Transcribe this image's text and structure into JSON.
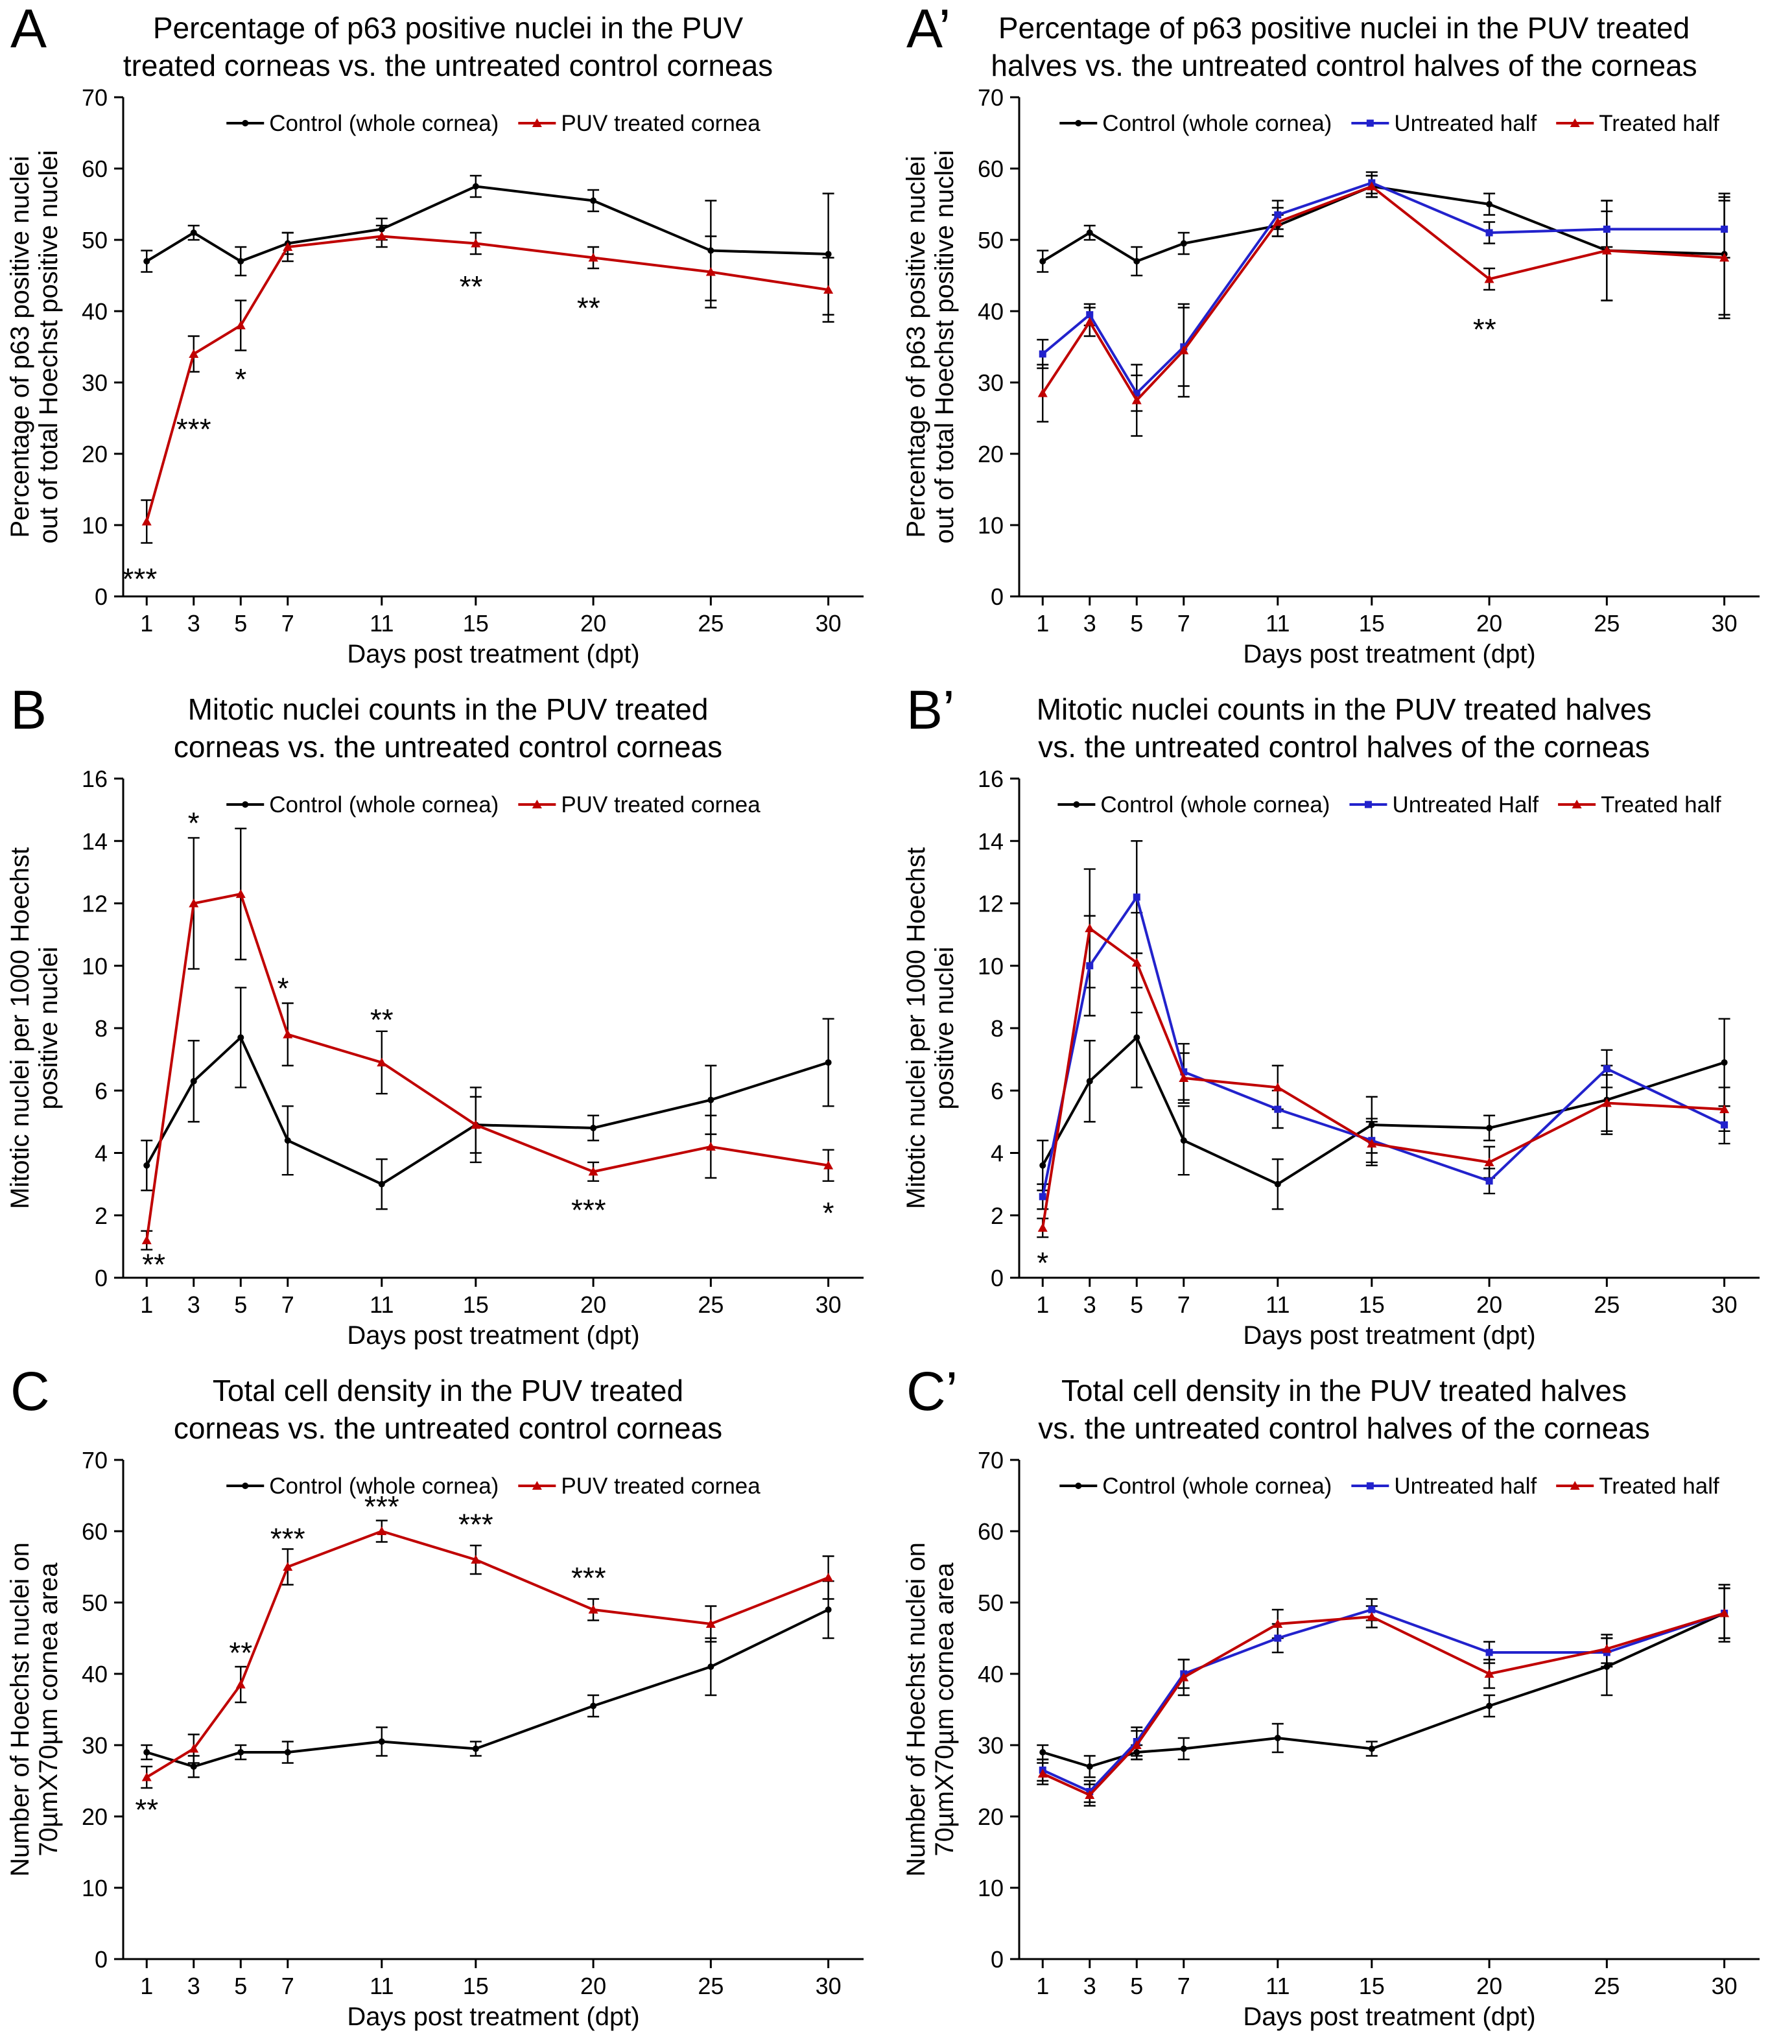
{
  "xlabel_shared": "Days post treatment (dpt)",
  "chart_data": [
    {
      "panel": "A",
      "type": "line",
      "title": "Percentage of p63 positive nuclei in the PUV\ntreated corneas vs. the untreated control corneas",
      "xlabel": "Days post treatment (dpt)",
      "ylabel": "Percentage of p63 positive nuclei\nout of total Hoechst positive nuclei",
      "x": [
        1,
        3,
        5,
        7,
        11,
        15,
        20,
        25,
        30
      ],
      "xlim": [
        0,
        31.5
      ],
      "ylim": [
        0,
        70
      ],
      "ytick_step": 10,
      "legend_position": "top",
      "grid": false,
      "series": [
        {
          "name": "Control (whole cornea)",
          "color": "#000000",
          "marker": "circle",
          "values": [
            47,
            51,
            47,
            49.5,
            51.5,
            57.5,
            55.5,
            48.5,
            48
          ],
          "errors": [
            1.5,
            1,
            2,
            1.5,
            1.5,
            1.5,
            1.5,
            7,
            8.5
          ]
        },
        {
          "name": "PUV treated cornea",
          "color": "#c00000",
          "marker": "triangle",
          "values": [
            10.5,
            34,
            38,
            49,
            50.5,
            49.5,
            47.5,
            45.5,
            43
          ],
          "errors": [
            3,
            2.5,
            3.5,
            2,
            1.5,
            1.5,
            1.5,
            5,
            4.5
          ]
        }
      ],
      "annotations": [
        {
          "text": "***",
          "x": 0.7,
          "y": 3
        },
        {
          "text": "***",
          "x": 3,
          "y": 24
        },
        {
          "text": "*",
          "x": 5,
          "y": 31
        },
        {
          "text": "**",
          "x": 14.8,
          "y": 44
        },
        {
          "text": "**",
          "x": 19.8,
          "y": 41
        }
      ]
    },
    {
      "panel": "A’",
      "type": "line",
      "title": "Percentage of p63 positive nuclei in the PUV treated\nhalves vs. the untreated control halves of the corneas",
      "xlabel": "Days post treatment (dpt)",
      "ylabel": "Percentage of p63 positive nuclei\nout of total Hoechst positive nuclei",
      "x": [
        1,
        3,
        5,
        7,
        11,
        15,
        20,
        25,
        30
      ],
      "xlim": [
        0,
        31.5
      ],
      "ylim": [
        0,
        70
      ],
      "ytick_step": 10,
      "legend_position": "top",
      "grid": false,
      "series": [
        {
          "name": "Control (whole cornea)",
          "color": "#000000",
          "marker": "circle",
          "values": [
            47,
            51,
            47,
            49.5,
            52,
            57.5,
            55,
            48.5,
            48
          ],
          "errors": [
            1.5,
            1,
            2,
            1.5,
            1.5,
            1.5,
            1.5,
            7,
            8.5
          ]
        },
        {
          "name": "Untreated half",
          "color": "#2222cc",
          "marker": "square",
          "values": [
            34,
            39.5,
            28.5,
            35,
            53.5,
            58,
            51,
            51.5,
            51.5
          ],
          "errors": [
            2,
            1.5,
            2.5,
            5.5,
            2,
            1.5,
            1.5,
            2.5,
            4
          ]
        },
        {
          "name": "Treated half",
          "color": "#c00000",
          "marker": "triangle",
          "values": [
            28.5,
            38.5,
            27.5,
            34.5,
            52.5,
            57.5,
            44.5,
            48.5,
            47.5
          ],
          "errors": [
            4,
            2,
            5,
            6.5,
            2,
            1.5,
            1.5,
            7,
            8.5
          ]
        }
      ],
      "annotations": [
        {
          "text": "**",
          "x": 19.8,
          "y": 38
        }
      ]
    },
    {
      "panel": "B",
      "type": "line",
      "title": "Mitotic nuclei counts in the PUV treated\ncorneas vs. the untreated control corneas",
      "xlabel": "Days post treatment (dpt)",
      "ylabel": "Mitotic nuclei  per 1000 Hoechst\npositive nuclei",
      "x": [
        1,
        3,
        5,
        7,
        11,
        15,
        20,
        25,
        30
      ],
      "xlim": [
        0,
        31.5
      ],
      "ylim": [
        0,
        16
      ],
      "ytick_step": 2,
      "legend_position": "top",
      "grid": false,
      "series": [
        {
          "name": "Control (whole cornea)",
          "color": "#000000",
          "marker": "circle",
          "values": [
            3.6,
            6.3,
            7.7,
            4.4,
            3.0,
            4.9,
            4.8,
            5.7,
            6.9
          ],
          "errors": [
            0.8,
            1.3,
            1.6,
            1.1,
            0.8,
            0.9,
            0.4,
            1.1,
            1.4
          ]
        },
        {
          "name": "PUV treated cornea",
          "color": "#c00000",
          "marker": "triangle",
          "values": [
            1.2,
            12.0,
            12.3,
            7.8,
            6.9,
            4.9,
            3.4,
            4.2,
            3.6
          ],
          "errors": [
            0.3,
            2.1,
            2.1,
            1.0,
            1.0,
            1.2,
            0.3,
            1.0,
            0.5
          ]
        }
      ],
      "annotations": [
        {
          "text": "**",
          "x": 1.3,
          "y": 0.55
        },
        {
          "text": "*",
          "x": 3,
          "y": 14.7
        },
        {
          "text": "*",
          "x": 6.8,
          "y": 9.4
        },
        {
          "text": "**",
          "x": 11,
          "y": 8.4
        },
        {
          "text": "***",
          "x": 19.8,
          "y": 2.3
        },
        {
          "text": "*",
          "x": 30,
          "y": 2.2
        }
      ]
    },
    {
      "panel": "B’",
      "type": "line",
      "title": "Mitotic nuclei counts in the PUV treated halves\nvs. the untreated control halves of the corneas",
      "xlabel": "Days post treatment (dpt)",
      "ylabel": "Mitotic nuclei  per 1000 Hoechst\npositive nuclei",
      "x": [
        1,
        3,
        5,
        7,
        11,
        15,
        20,
        25,
        30
      ],
      "xlim": [
        0,
        31.5
      ],
      "ylim": [
        0,
        16
      ],
      "ytick_step": 2,
      "legend_position": "top",
      "grid": false,
      "series": [
        {
          "name": "Control (whole cornea)",
          "color": "#000000",
          "marker": "circle",
          "values": [
            3.6,
            6.3,
            7.7,
            4.4,
            3.0,
            4.9,
            4.8,
            5.7,
            6.9
          ],
          "errors": [
            0.8,
            1.3,
            1.6,
            1.1,
            0.8,
            0.9,
            0.4,
            1.1,
            1.4
          ]
        },
        {
          "name": "Untreated Half",
          "color": "#2222cc",
          "marker": "square",
          "values": [
            2.6,
            10.0,
            12.2,
            6.6,
            5.4,
            4.4,
            3.1,
            6.7,
            4.9
          ],
          "errors": [
            0.4,
            1.6,
            1.8,
            0.9,
            0.6,
            0.7,
            0.4,
            0.6,
            0.6
          ]
        },
        {
          "name": "Treated half",
          "color": "#c00000",
          "marker": "triangle",
          "values": [
            1.6,
            11.2,
            10.1,
            6.4,
            6.1,
            4.3,
            3.7,
            5.6,
            5.4
          ],
          "errors": [
            0.3,
            1.9,
            1.6,
            0.8,
            0.7,
            0.7,
            0.5,
            0.9,
            0.7
          ]
        }
      ],
      "annotations": [
        {
          "text": "*",
          "x": 1,
          "y": 0.6
        }
      ]
    },
    {
      "panel": "C",
      "type": "line",
      "title": "Total cell density in the PUV treated\ncorneas vs. the untreated control corneas",
      "xlabel": "Days post treatment (dpt)",
      "ylabel": "Number of Hoechst nuclei on\n70µmX70µm cornea area",
      "x": [
        1,
        3,
        5,
        7,
        11,
        15,
        20,
        25,
        30
      ],
      "xlim": [
        0,
        31.5
      ],
      "ylim": [
        0,
        70
      ],
      "ytick_step": 10,
      "legend_position": "top",
      "grid": false,
      "series": [
        {
          "name": "Control (whole cornea)",
          "color": "#000000",
          "marker": "circle",
          "values": [
            29,
            27,
            29,
            29,
            30.5,
            29.5,
            35.5,
            41,
            49
          ],
          "errors": [
            1,
            1.5,
            1,
            1.5,
            2,
            1,
            1.5,
            4,
            4
          ]
        },
        {
          "name": "PUV treated cornea",
          "color": "#c00000",
          "marker": "triangle",
          "values": [
            25.5,
            29.5,
            38.5,
            55,
            60,
            56,
            49,
            47,
            53.5
          ],
          "errors": [
            1.5,
            2,
            2.5,
            2.5,
            1.5,
            2,
            1.5,
            2.5,
            3
          ]
        }
      ],
      "annotations": [
        {
          "text": "**",
          "x": 1,
          "y": 21.5
        },
        {
          "text": "**",
          "x": 5,
          "y": 43.5
        },
        {
          "text": "***",
          "x": 7,
          "y": 59.5
        },
        {
          "text": "***",
          "x": 11,
          "y": 64
        },
        {
          "text": "***",
          "x": 15,
          "y": 61.5
        },
        {
          "text": "***",
          "x": 19.8,
          "y": 54
        }
      ]
    },
    {
      "panel": "C’",
      "type": "line",
      "title": "Total cell density in the PUV treated halves\nvs. the untreated control halves of the corneas",
      "xlabel": "Days post treatment (dpt)",
      "ylabel": "Number of Hoechst nuclei on\n70µmX70µm cornea area",
      "x": [
        1,
        3,
        5,
        7,
        11,
        15,
        20,
        25,
        30
      ],
      "xlim": [
        0,
        31.5
      ],
      "ylim": [
        0,
        70
      ],
      "ytick_step": 10,
      "legend_position": "top",
      "grid": false,
      "series": [
        {
          "name": "Control (whole cornea)",
          "color": "#000000",
          "marker": "circle",
          "values": [
            29,
            27,
            29,
            29.5,
            31,
            29.5,
            35.5,
            41,
            48.5
          ],
          "errors": [
            1,
            1.5,
            1,
            1.5,
            2,
            1,
            1.5,
            4,
            4
          ]
        },
        {
          "name": "Untreated half",
          "color": "#2222cc",
          "marker": "square",
          "values": [
            26.5,
            23.5,
            30.5,
            40,
            45,
            49,
            43,
            43,
            48.5
          ],
          "errors": [
            1.5,
            1.5,
            2,
            2,
            2,
            1.5,
            1.5,
            2,
            3.5
          ]
        },
        {
          "name": "Treated half",
          "color": "#c00000",
          "marker": "triangle",
          "values": [
            26,
            23,
            30,
            39.5,
            47,
            48,
            40,
            43.5,
            48.5
          ],
          "errors": [
            1.5,
            1.5,
            2,
            2.5,
            2,
            1.5,
            2,
            2,
            3.5
          ]
        }
      ],
      "annotations": []
    }
  ]
}
